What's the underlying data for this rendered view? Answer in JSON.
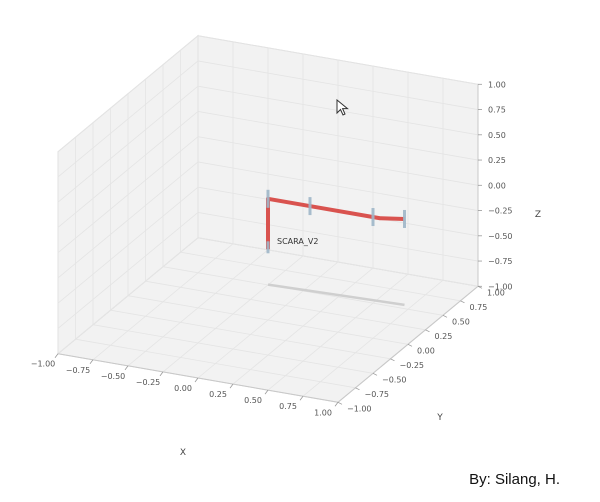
{
  "chart_data": {
    "type": "3d-line",
    "x_axis": {
      "label": "X",
      "ticks": [
        "−1.00",
        "−0.75",
        "−0.50",
        "−0.25",
        "0.00",
        "0.25",
        "0.50",
        "0.75",
        "1.00"
      ],
      "range": [
        -1,
        1
      ]
    },
    "y_axis": {
      "label": "Y",
      "ticks": [
        "−1.00",
        "−0.75",
        "−0.50",
        "−0.25",
        "0.00",
        "0.25",
        "0.50",
        "0.75",
        "1.00"
      ],
      "range": [
        -1,
        1
      ]
    },
    "z_axis": {
      "label": "Z",
      "ticks": [
        "−1.00",
        "−0.75",
        "−0.50",
        "−0.25",
        "0.00",
        "0.25",
        "0.50",
        "0.75",
        "1.00"
      ],
      "range": [
        -1,
        1
      ]
    },
    "grid": true,
    "robot_label": "SCARA_V2",
    "arm": {
      "color": "#d9534f",
      "joints": [
        [
          0.0,
          0.0,
          -0.3
        ],
        [
          0.0,
          0.0,
          0.2
        ],
        [
          0.35,
          0.0,
          0.2
        ],
        [
          0.8,
          0.0,
          0.2
        ],
        [
          0.95,
          0.05,
          0.2
        ]
      ],
      "marker_joints": [
        [
          0.0,
          0.0,
          0.2
        ],
        [
          0.3,
          0.0,
          0.2
        ],
        [
          0.75,
          0.0,
          0.2
        ],
        [
          0.95,
          0.05,
          0.2
        ]
      ]
    },
    "shadow": {
      "color": "#cfcfcf",
      "points": [
        [
          0.0,
          0.0,
          -0.65
        ],
        [
          0.95,
          0.05,
          -0.65
        ]
      ]
    }
  },
  "credit": "By: Silang, H."
}
